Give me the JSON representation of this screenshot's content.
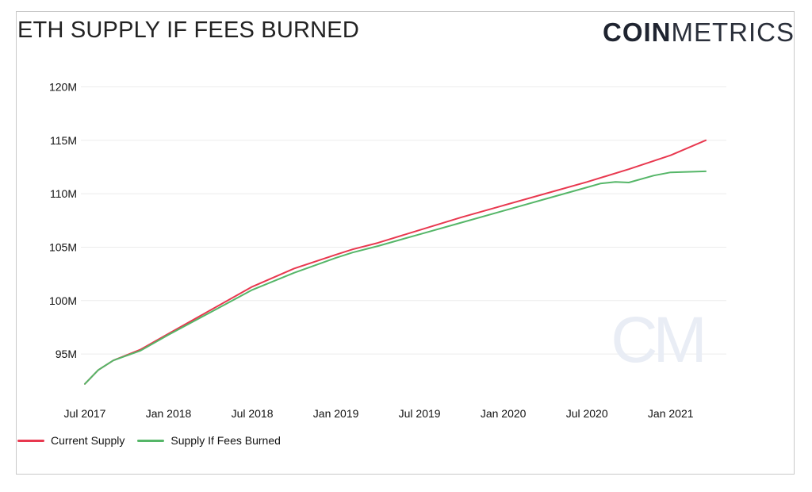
{
  "header": {
    "title": "ETH SUPPLY IF FEES BURNED",
    "brand_bold": "COIN",
    "brand_light": "METRICS",
    "watermark": "CM"
  },
  "colors": {
    "current": "#e8384f",
    "burned": "#55b668",
    "grid": "#ececec",
    "watermark": "#e9edf5"
  },
  "chart_data": {
    "type": "line",
    "title": "ETH SUPPLY IF FEES BURNED",
    "xlabel": "",
    "ylabel": "",
    "ylim": [
      91000000,
      121000000
    ],
    "xlim": [
      2017.5,
      2021.333
    ],
    "y_ticks": [
      {
        "value": 95000000,
        "label": "95M"
      },
      {
        "value": 100000000,
        "label": "100M"
      },
      {
        "value": 105000000,
        "label": "105M"
      },
      {
        "value": 110000000,
        "label": "110M"
      },
      {
        "value": 115000000,
        "label": "115M"
      },
      {
        "value": 120000000,
        "label": "120M"
      }
    ],
    "x_ticks": [
      {
        "value": 2017.5,
        "label": "Jul 2017"
      },
      {
        "value": 2018.0,
        "label": "Jan 2018"
      },
      {
        "value": 2018.5,
        "label": "Jul 2018"
      },
      {
        "value": 2019.0,
        "label": "Jan 2019"
      },
      {
        "value": 2019.5,
        "label": "Jul 2019"
      },
      {
        "value": 2020.0,
        "label": "Jan 2020"
      },
      {
        "value": 2020.5,
        "label": "Jul 2020"
      },
      {
        "value": 2021.0,
        "label": "Jan 2021"
      }
    ],
    "series": [
      {
        "name": "Current Supply",
        "color": "#e8384f",
        "x": [
          2017.5,
          2017.58,
          2017.67,
          2017.83,
          2018.0,
          2018.25,
          2018.5,
          2018.75,
          2019.0,
          2019.1,
          2019.25,
          2019.5,
          2019.75,
          2020.0,
          2020.25,
          2020.5,
          2020.75,
          2021.0,
          2021.21
        ],
        "values": [
          92200000,
          93500000,
          94400000,
          95400000,
          96900000,
          99100000,
          101300000,
          103000000,
          104300000,
          104800000,
          105400000,
          106600000,
          107800000,
          108900000,
          110000000,
          111100000,
          112300000,
          113600000,
          115000000
        ]
      },
      {
        "name": "Supply If Fees Burned",
        "color": "#55b668",
        "x": [
          2017.5,
          2017.58,
          2017.67,
          2017.83,
          2018.0,
          2018.25,
          2018.5,
          2018.75,
          2019.0,
          2019.1,
          2019.25,
          2019.5,
          2019.75,
          2020.0,
          2020.25,
          2020.5,
          2020.58,
          2020.67,
          2020.75,
          2020.9,
          2021.0,
          2021.21
        ],
        "values": [
          92200000,
          93500000,
          94400000,
          95300000,
          96800000,
          98900000,
          101000000,
          102600000,
          104000000,
          104500000,
          105100000,
          106200000,
          107300000,
          108400000,
          109500000,
          110600000,
          110950000,
          111100000,
          111050000,
          111700000,
          112000000,
          112100000
        ]
      }
    ],
    "legend": [
      {
        "label": "Current Supply",
        "color": "#e8384f"
      },
      {
        "label": "Supply If Fees Burned",
        "color": "#55b668"
      }
    ]
  }
}
